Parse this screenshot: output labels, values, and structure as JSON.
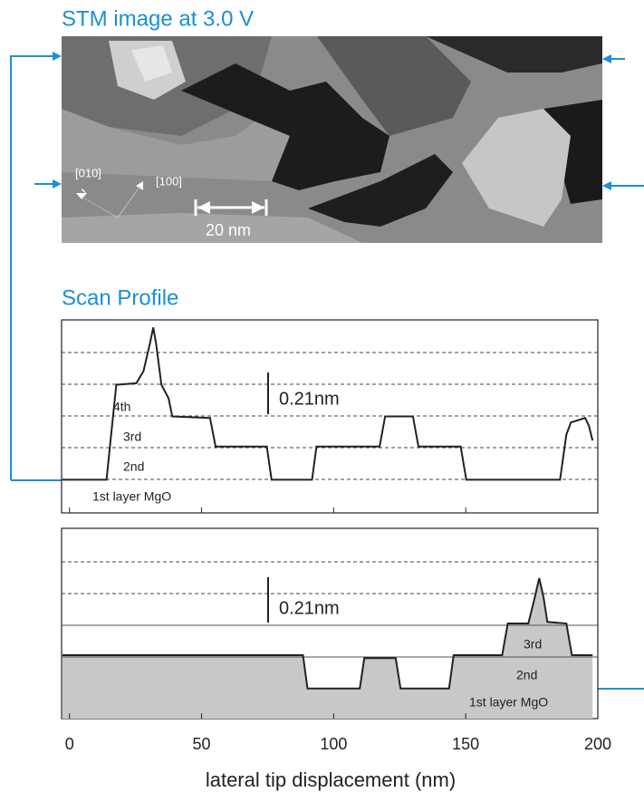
{
  "image": {
    "title": "STM image at 3.0 V",
    "labels": [
      "[010]",
      "[100]",
      "20 nm"
    ]
  },
  "profile_title": "Scan Profile",
  "chart_data": [
    {
      "type": "line",
      "color": "#222222",
      "x": [
        -2.7,
        14,
        17.7,
        25.3,
        28,
        30.4,
        31.7,
        32.8,
        34.8,
        37.5,
        38.9,
        53.2,
        55.3,
        74.7,
        76.5,
        91.8,
        93.5,
        117.4,
        119.5,
        130,
        132.1,
        148.1,
        150.2,
        185.7,
        188.1,
        189.8,
        195.2,
        196.6,
        198
      ],
      "values": [
        0,
        0,
        0.63,
        0.64,
        0.72,
        0.9,
        1.01,
        0.9,
        0.63,
        0.54,
        0.42,
        0.41,
        0.22,
        0.22,
        0,
        0,
        0.22,
        0.22,
        0.42,
        0.42,
        0.22,
        0.22,
        0,
        0,
        0.3,
        0.38,
        0.41,
        0.36,
        0.26
      ],
      "xlim": [
        -3,
        200
      ],
      "ylim": [
        -0.22,
        1.06
      ],
      "annotations": [
        "4th",
        "3rd",
        "2nd",
        "1st layer MgO",
        "0.21nm"
      ]
    },
    {
      "type": "area",
      "color": "#222222",
      "fill": "#c8c8c8",
      "x": [
        -2.7,
        88.4,
        90.1,
        109.9,
        111.6,
        123.5,
        125.3,
        143.7,
        145.4,
        163.8,
        165.9,
        173.7,
        176.1,
        177.8,
        179.5,
        180.9,
        188.1,
        190.2,
        198
      ],
      "values": [
        0.22,
        0.22,
        0,
        0,
        0.2,
        0.2,
        0,
        0,
        0.22,
        0.22,
        0.43,
        0.43,
        0.6,
        0.73,
        0.6,
        0.44,
        0.43,
        0.22,
        0.22
      ],
      "xlim": [
        -3,
        200
      ],
      "ylim": [
        -0.2,
        1.06
      ],
      "xticks": [
        0,
        50,
        100,
        150,
        200
      ],
      "xlabel": "lateral tip displacement (nm)",
      "annotations": [
        "3rd",
        "2nd",
        "1st layer MgO",
        "0.21nm"
      ]
    }
  ]
}
